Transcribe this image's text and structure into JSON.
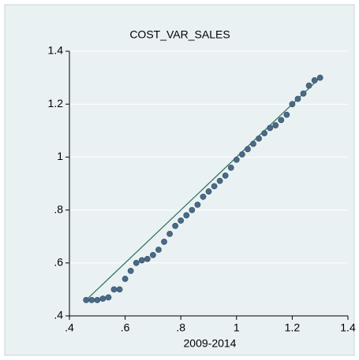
{
  "chart_data": {
    "type": "scatter",
    "title": "COST_VAR_SALES",
    "xlabel": "2009-2014",
    "x": [
      0.46,
      0.48,
      0.5,
      0.52,
      0.54,
      0.56,
      0.58,
      0.6,
      0.62,
      0.64,
      0.66,
      0.68,
      0.7,
      0.72,
      0.74,
      0.76,
      0.78,
      0.8,
      0.82,
      0.84,
      0.86,
      0.88,
      0.9,
      0.92,
      0.94,
      0.96,
      0.98,
      1.0,
      1.02,
      1.04,
      1.06,
      1.08,
      1.1,
      1.12,
      1.14,
      1.16,
      1.18,
      1.2,
      1.22,
      1.24,
      1.26,
      1.28,
      1.3
    ],
    "values": [
      0.46,
      0.46,
      0.46,
      0.465,
      0.47,
      0.5,
      0.5,
      0.54,
      0.57,
      0.6,
      0.61,
      0.615,
      0.63,
      0.65,
      0.68,
      0.71,
      0.74,
      0.76,
      0.78,
      0.8,
      0.82,
      0.85,
      0.87,
      0.89,
      0.91,
      0.93,
      0.96,
      0.99,
      1.01,
      1.03,
      1.05,
      1.07,
      1.09,
      1.11,
      1.12,
      1.14,
      1.16,
      1.2,
      1.22,
      1.24,
      1.27,
      1.29,
      1.3
    ],
    "color": "#4a6a86",
    "reference_line": {
      "x": [
        0.46,
        1.3
      ],
      "y": [
        0.46,
        1.3
      ],
      "color": "#2f6f60"
    },
    "xlim": [
      0.4,
      1.4
    ],
    "ylim": [
      0.4,
      1.4
    ],
    "xticks": [
      {
        "value": 0.4,
        "label": ".4"
      },
      {
        "value": 0.6,
        "label": ".6"
      },
      {
        "value": 0.8,
        "label": ".8"
      },
      1,
      1.2,
      1.4
    ],
    "yticks": [
      {
        "value": 0.4,
        "label": ".4"
      },
      {
        "value": 0.6,
        "label": ".6"
      },
      {
        "value": 0.8,
        "label": ".8"
      },
      1,
      1.2,
      1.4
    ],
    "grid": true
  }
}
